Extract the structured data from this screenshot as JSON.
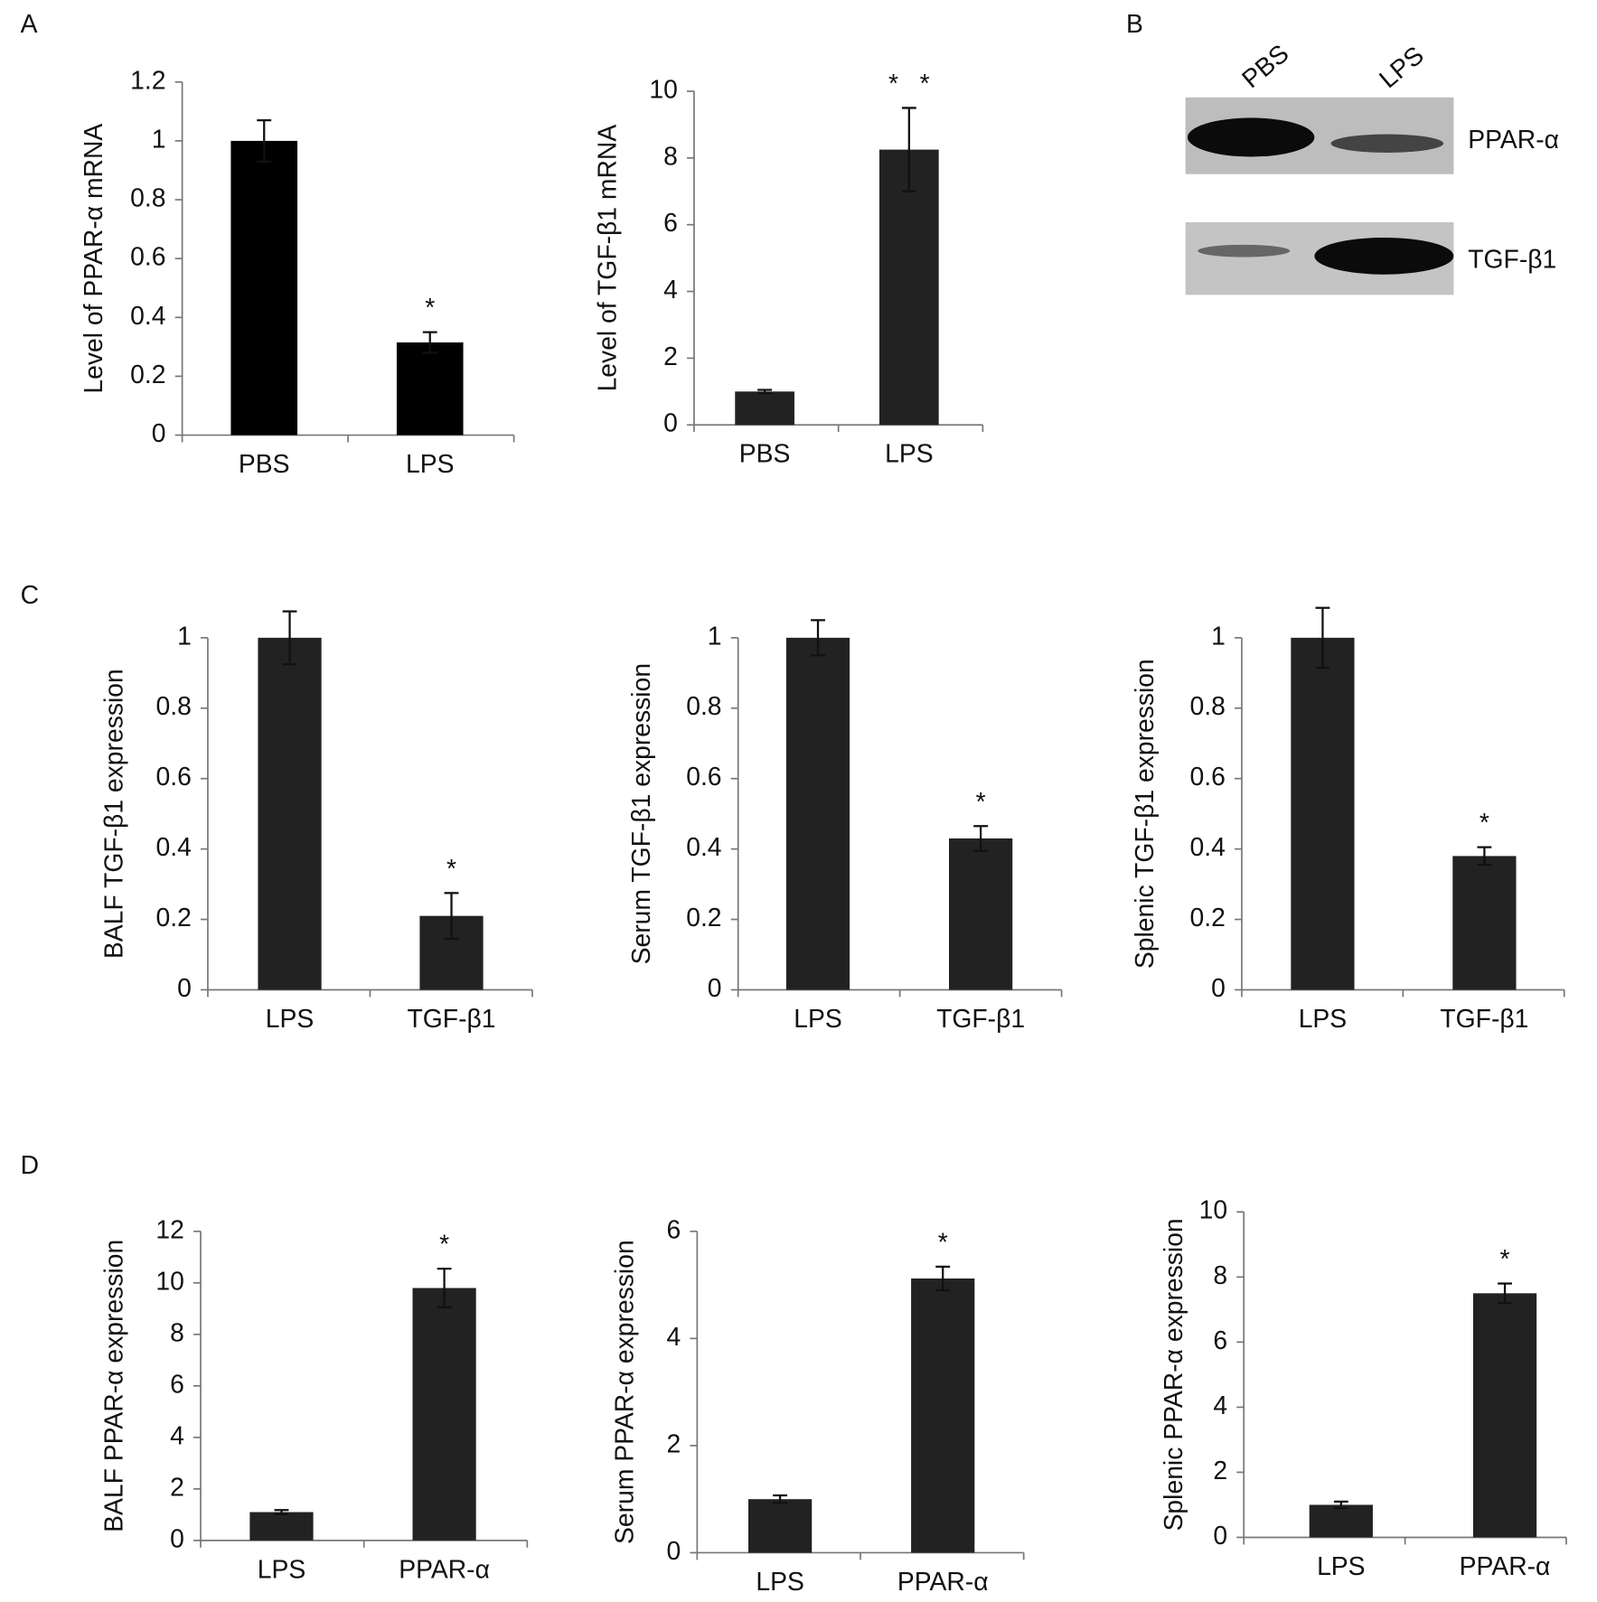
{
  "panel_labels": [
    "A",
    "B",
    "C",
    "D"
  ],
  "blot": {
    "lanes": [
      "PBS",
      "LPS"
    ],
    "bands": [
      "PPAR-α",
      "TGF-β1"
    ]
  },
  "chart_data": [
    {
      "type": "bar",
      "ylabel": "Level of PPAR-α mRNA",
      "categories": [
        "PBS",
        "LPS"
      ],
      "values": [
        1.0,
        0.315
      ],
      "errors": [
        0.07,
        0.035
      ],
      "significance": [
        null,
        "*"
      ],
      "color": "#000000",
      "ylim": [
        0,
        1.2
      ],
      "yticks": [
        0,
        0.2,
        0.4,
        0.6,
        0.8,
        1,
        1.2
      ]
    },
    {
      "type": "bar",
      "ylabel": "Level of TGF-β1 mRNA",
      "categories": [
        "PBS",
        "LPS"
      ],
      "values": [
        1.0,
        8.25
      ],
      "errors": [
        0.05,
        1.25
      ],
      "significance": [
        null,
        "*   *"
      ],
      "color": "#222222",
      "ylim": [
        0,
        10
      ],
      "yticks": [
        0,
        2,
        4,
        6,
        8,
        10
      ]
    },
    {
      "type": "bar",
      "ylabel": "BALF TGF-β1 expression",
      "categories": [
        "LPS",
        "TGF-β1"
      ],
      "values": [
        1.0,
        0.21
      ],
      "errors": [
        0.075,
        0.065
      ],
      "significance": [
        null,
        "*"
      ],
      "color": "#222222",
      "ylim": [
        0,
        1
      ],
      "yticks": [
        0,
        0.2,
        0.4,
        0.6,
        0.8,
        1
      ]
    },
    {
      "type": "bar",
      "ylabel": "Serum TGF-β1 expression",
      "categories": [
        "LPS",
        "TGF-β1"
      ],
      "values": [
        1.0,
        0.43
      ],
      "errors": [
        0.05,
        0.035
      ],
      "significance": [
        null,
        "*"
      ],
      "color": "#222222",
      "ylim": [
        0,
        1
      ],
      "yticks": [
        0,
        0.2,
        0.4,
        0.6,
        0.8,
        1
      ]
    },
    {
      "type": "bar",
      "ylabel": "Splenic TGF-β1 expression",
      "categories": [
        "LPS",
        "TGF-β1"
      ],
      "values": [
        1.0,
        0.38
      ],
      "errors": [
        0.085,
        0.025
      ],
      "significance": [
        null,
        "*"
      ],
      "color": "#222222",
      "ylim": [
        0,
        1
      ],
      "yticks": [
        0,
        0.2,
        0.4,
        0.6,
        0.8,
        1
      ]
    },
    {
      "type": "bar",
      "ylabel": "BALF PPAR-α expression",
      "categories": [
        "LPS",
        "PPAR-α"
      ],
      "values": [
        1.1,
        9.8
      ],
      "errors": [
        0.08,
        0.75
      ],
      "significance": [
        null,
        "*"
      ],
      "color": "#222222",
      "ylim": [
        0,
        12
      ],
      "yticks": [
        0,
        2,
        4,
        6,
        8,
        10,
        12
      ]
    },
    {
      "type": "bar",
      "ylabel": "Serum PPAR-α expression",
      "categories": [
        "LPS",
        "PPAR-α"
      ],
      "values": [
        1.0,
        5.12
      ],
      "errors": [
        0.07,
        0.22
      ],
      "significance": [
        null,
        "*"
      ],
      "color": "#222222",
      "ylim": [
        0,
        6
      ],
      "yticks": [
        0,
        2,
        4,
        6
      ]
    },
    {
      "type": "bar",
      "ylabel": "Splenic PPAR-α expression",
      "categories": [
        "LPS",
        "PPAR-α"
      ],
      "values": [
        1.0,
        7.5
      ],
      "errors": [
        0.1,
        0.3
      ],
      "significance": [
        null,
        "*"
      ],
      "color": "#222222",
      "ylim": [
        0,
        10
      ],
      "yticks": [
        0,
        2,
        4,
        6,
        8,
        10
      ]
    }
  ]
}
